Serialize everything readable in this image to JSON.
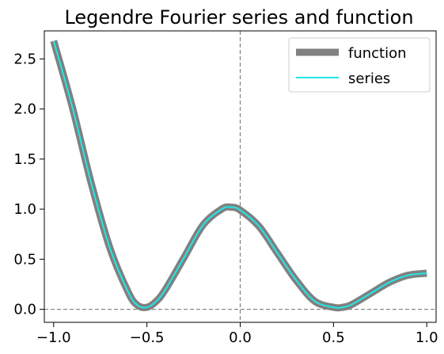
{
  "chart_data": {
    "type": "line",
    "title": "Legendre Fourier series and function",
    "xlabel": "",
    "ylabel": "",
    "xlim": [
      -1.05,
      1.05
    ],
    "ylim": [
      -0.13,
      2.78
    ],
    "x_ticks": [
      -1.0,
      -0.5,
      0.0,
      0.5,
      1.0
    ],
    "x_tick_labels": [
      "−1.0",
      "−0.5",
      "0.0",
      "0.5",
      "1.0"
    ],
    "y_ticks": [
      0.0,
      0.5,
      1.0,
      1.5,
      2.0,
      2.5
    ],
    "y_tick_labels": [
      "0.0",
      "0.5",
      "1.0",
      "1.5",
      "2.0",
      "2.5"
    ],
    "reference_lines": {
      "x": 0.0,
      "y": 0.0,
      "style": "dashed",
      "color": "#808080"
    },
    "grid": false,
    "legend_position": "top-right",
    "x": [
      -1.0,
      -0.9,
      -0.8,
      -0.7,
      -0.6,
      -0.55,
      -0.5,
      -0.45,
      -0.4,
      -0.3,
      -0.2,
      -0.1,
      -0.05,
      0.0,
      0.1,
      0.2,
      0.3,
      0.4,
      0.5,
      0.55,
      0.6,
      0.7,
      0.8,
      0.9,
      1.0
    ],
    "series": [
      {
        "name": "function",
        "color": "#808080",
        "values": [
          2.68,
          2.02,
          1.27,
          0.62,
          0.17,
          0.04,
          0.02,
          0.08,
          0.2,
          0.52,
          0.84,
          1.0,
          1.02,
          0.99,
          0.83,
          0.56,
          0.29,
          0.08,
          0.02,
          0.02,
          0.05,
          0.16,
          0.27,
          0.34,
          0.36
        ]
      },
      {
        "name": "series",
        "color": "#22e6e6",
        "values": [
          2.68,
          2.02,
          1.27,
          0.62,
          0.17,
          0.04,
          0.02,
          0.08,
          0.2,
          0.52,
          0.84,
          1.0,
          1.02,
          0.99,
          0.83,
          0.56,
          0.29,
          0.08,
          0.02,
          0.02,
          0.05,
          0.16,
          0.27,
          0.34,
          0.36
        ]
      }
    ]
  }
}
